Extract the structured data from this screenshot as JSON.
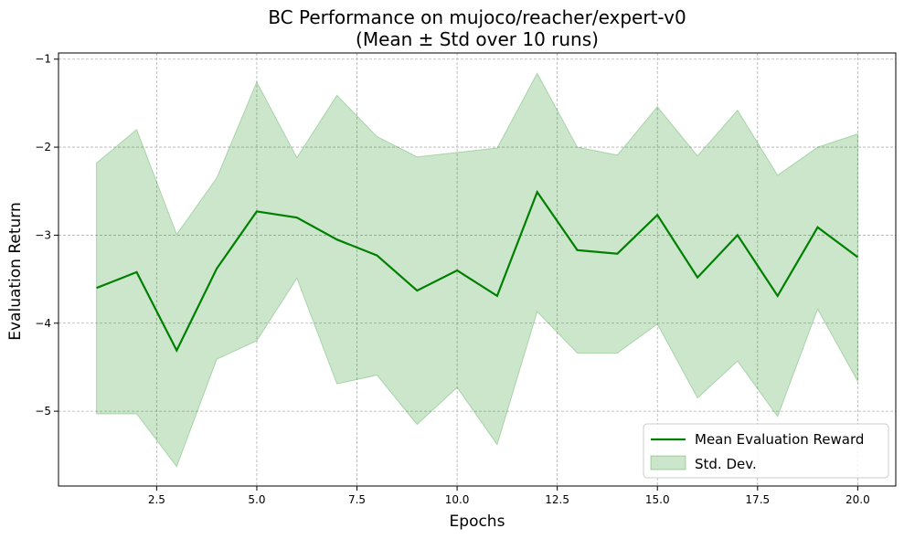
{
  "chart_data": {
    "type": "line",
    "title_line1": "BC Performance on mujoco/reacher/expert-v0",
    "title_line2": "(Mean ± Std over 10 runs)",
    "xlabel": "Epochs",
    "ylabel": "Evaluation Return",
    "xlim": [
      0.05,
      20.95
    ],
    "ylim": [
      -5.85,
      -0.93
    ],
    "x_ticks": [
      2.5,
      5.0,
      7.5,
      10.0,
      12.5,
      15.0,
      17.5,
      20.0
    ],
    "x_tick_labels": [
      "2.5",
      "5.0",
      "7.5",
      "10.0",
      "12.5",
      "15.0",
      "17.5",
      "20.0"
    ],
    "y_ticks": [
      -5,
      -4,
      -3,
      -2,
      -1
    ],
    "y_tick_labels": [
      "−5",
      "−4",
      "−3",
      "−2",
      "−1"
    ],
    "grid": true,
    "legend_position": "bottom-right",
    "x": [
      1,
      2,
      3,
      4,
      5,
      6,
      7,
      8,
      9,
      10,
      11,
      12,
      13,
      14,
      15,
      16,
      17,
      18,
      19,
      20
    ],
    "series": [
      {
        "name": "Mean Evaluation Reward",
        "color": "#008000",
        "values": [
          -3.6,
          -3.42,
          -4.31,
          -3.38,
          -2.73,
          -2.8,
          -3.05,
          -3.23,
          -3.63,
          -3.4,
          -3.69,
          -2.51,
          -3.17,
          -3.21,
          -2.77,
          -3.48,
          -3.0,
          -3.69,
          -2.91,
          -3.25
        ]
      }
    ],
    "band": {
      "name": "Std. Dev.",
      "color": "#008000",
      "opacity": 0.2,
      "upper": [
        -2.18,
        -1.8,
        -2.99,
        -2.35,
        -1.26,
        -2.12,
        -1.41,
        -1.88,
        -2.11,
        -2.06,
        -2.01,
        -1.16,
        -2.0,
        -2.09,
        -1.54,
        -2.1,
        -1.58,
        -2.32,
        -2.0,
        -1.85
      ],
      "lower": [
        -5.03,
        -5.03,
        -5.63,
        -4.41,
        -4.2,
        -3.49,
        -4.69,
        -4.59,
        -5.15,
        -4.73,
        -5.38,
        -3.87,
        -4.34,
        -4.34,
        -4.01,
        -4.85,
        -4.43,
        -5.06,
        -3.84,
        -4.66
      ]
    }
  }
}
